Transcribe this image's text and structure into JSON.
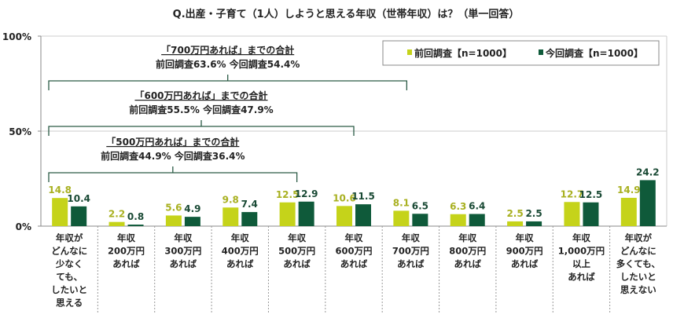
{
  "chart_data": {
    "type": "bar",
    "title": "Q.出産・子育て（1人）しようと思える年収（世帯年収）は？（単一回答）",
    "ylim": [
      0,
      100
    ],
    "yticks": [
      "0%",
      "50%",
      "100%"
    ],
    "categories": [
      [
        "年収が",
        "どんなに",
        "少なく",
        "ても、",
        "したいと",
        "思える"
      ],
      [
        "年収",
        "200万円",
        "あれば"
      ],
      [
        "年収",
        "300万円",
        "あれば"
      ],
      [
        "年収",
        "400万円",
        "あれば"
      ],
      [
        "年収",
        "500万円",
        "あれば"
      ],
      [
        "年収",
        "600万円",
        "あれば"
      ],
      [
        "年収",
        "700万円",
        "あれば"
      ],
      [
        "年収",
        "800万円",
        "あれば"
      ],
      [
        "年収",
        "900万円",
        "あれば"
      ],
      [
        "年収",
        "1,000万円",
        "以上",
        "あれば"
      ],
      [
        "年収が",
        "どんなに",
        "多くても、",
        "したいと",
        "思えない"
      ]
    ],
    "series": [
      {
        "name": "前回調査【n=1000】",
        "color": "#c5d31a",
        "labelColor": "#a8b020",
        "values": [
          14.8,
          2.2,
          5.6,
          9.8,
          12.5,
          10.6,
          8.1,
          6.3,
          2.5,
          12.7,
          14.9
        ]
      },
      {
        "name": "今回調査【n=1000】",
        "color": "#0f5a3a",
        "labelColor": "#1a4a35",
        "values": [
          10.4,
          0.8,
          4.9,
          7.4,
          12.9,
          11.5,
          6.5,
          6.4,
          2.5,
          12.5,
          24.2
        ]
      }
    ],
    "legend": "top-right",
    "annotations": [
      {
        "title": "「700万円あれば」までの合計",
        "text": "前回調査63.6%  今回調査54.4%",
        "span": [
          0,
          6
        ]
      },
      {
        "title": "「600万円あれば」までの合計",
        "text": "前回調査55.5%  今回調査47.9%",
        "span": [
          0,
          5
        ]
      },
      {
        "title": "「500万円あれば」までの合計",
        "text": "前回調査44.9%  今回調査36.4%",
        "span": [
          0,
          4
        ]
      }
    ]
  }
}
